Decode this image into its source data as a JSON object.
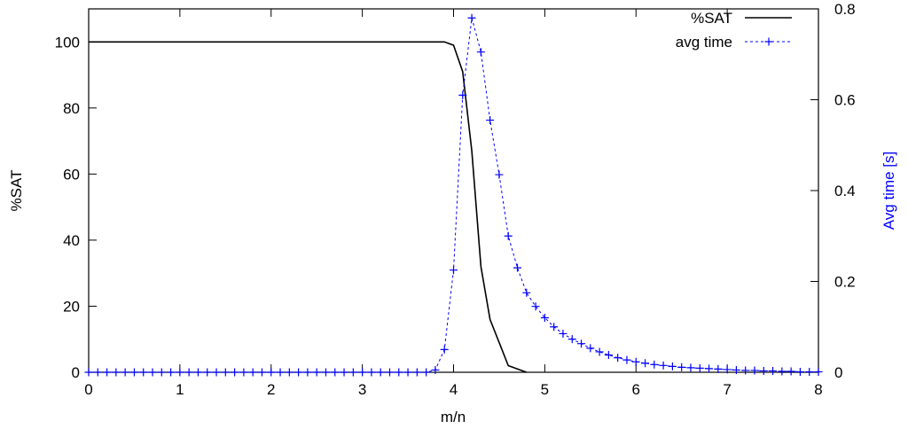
{
  "chart_data": {
    "type": "line",
    "title": "",
    "xlabel": "m/n",
    "ylabel": "%SAT",
    "y2label": "Avg time [s]",
    "xlim": [
      0,
      8
    ],
    "ylim": [
      0,
      110
    ],
    "y2lim": [
      0,
      0.8
    ],
    "grid": false,
    "legend_position": "top-right",
    "x_ticks": [
      "0",
      "1",
      "2",
      "3",
      "4",
      "5",
      "6",
      "7",
      "8"
    ],
    "y_ticks": [
      "0",
      "20",
      "40",
      "60",
      "80",
      "100"
    ],
    "y2_ticks": [
      "0",
      "0.2",
      "0.4",
      "0.6",
      "0.8"
    ],
    "colors": {
      "sat": "#000000",
      "time": "#0000ff"
    },
    "series": [
      {
        "name": "%SAT",
        "axis": "left",
        "style": "solid",
        "x": [
          0,
          0.5,
          1,
          1.5,
          2,
          2.5,
          3,
          3.5,
          3.8,
          3.9,
          4.0,
          4.1,
          4.2,
          4.3,
          4.4,
          4.5,
          4.6,
          4.7,
          4.8
        ],
        "y": [
          100,
          100,
          100,
          100,
          100,
          100,
          100,
          100,
          100,
          100,
          99,
          91,
          67,
          32,
          16,
          9,
          2,
          1,
          0
        ]
      },
      {
        "name": "avg time",
        "axis": "right",
        "style": "dashed-markers",
        "x": [
          0,
          0.1,
          0.2,
          0.3,
          0.4,
          0.5,
          0.6,
          0.7,
          0.8,
          0.9,
          1.0,
          1.1,
          1.2,
          1.3,
          1.4,
          1.5,
          1.6,
          1.7,
          1.8,
          1.9,
          2.0,
          2.1,
          2.2,
          2.3,
          2.4,
          2.5,
          2.6,
          2.7,
          2.8,
          2.9,
          3.0,
          3.1,
          3.2,
          3.3,
          3.4,
          3.5,
          3.6,
          3.7,
          3.8,
          3.9,
          4.0,
          4.1,
          4.2,
          4.3,
          4.4,
          4.5,
          4.6,
          4.7,
          4.8,
          4.9,
          5.0,
          5.1,
          5.2,
          5.3,
          5.4,
          5.5,
          5.6,
          5.7,
          5.8,
          5.9,
          6.0,
          6.1,
          6.2,
          6.3,
          6.4,
          6.5,
          6.6,
          6.7,
          6.8,
          6.9,
          7.0,
          7.1,
          7.2,
          7.3,
          7.4,
          7.5,
          7.6,
          7.7,
          7.8,
          7.9,
          8.0
        ],
        "y": [
          0,
          0,
          0,
          0,
          0,
          0,
          0,
          0,
          0,
          0,
          0,
          0,
          0,
          0,
          0,
          0,
          0,
          0,
          0,
          0,
          0,
          0,
          0,
          0,
          0,
          0,
          0,
          0,
          0,
          0,
          0,
          0,
          0,
          0,
          0,
          0,
          0,
          0,
          0.005,
          0.05,
          0.225,
          0.61,
          0.78,
          0.705,
          0.555,
          0.435,
          0.3,
          0.23,
          0.175,
          0.145,
          0.12,
          0.1,
          0.085,
          0.073,
          0.063,
          0.053,
          0.045,
          0.038,
          0.032,
          0.027,
          0.023,
          0.02,
          0.017,
          0.015,
          0.013,
          0.011,
          0.01,
          0.009,
          0.008,
          0.007,
          0.006,
          0.005,
          0.004,
          0.004,
          0.003,
          0.003,
          0.002,
          0.002,
          0.001,
          0.001,
          0.001
        ]
      }
    ]
  }
}
